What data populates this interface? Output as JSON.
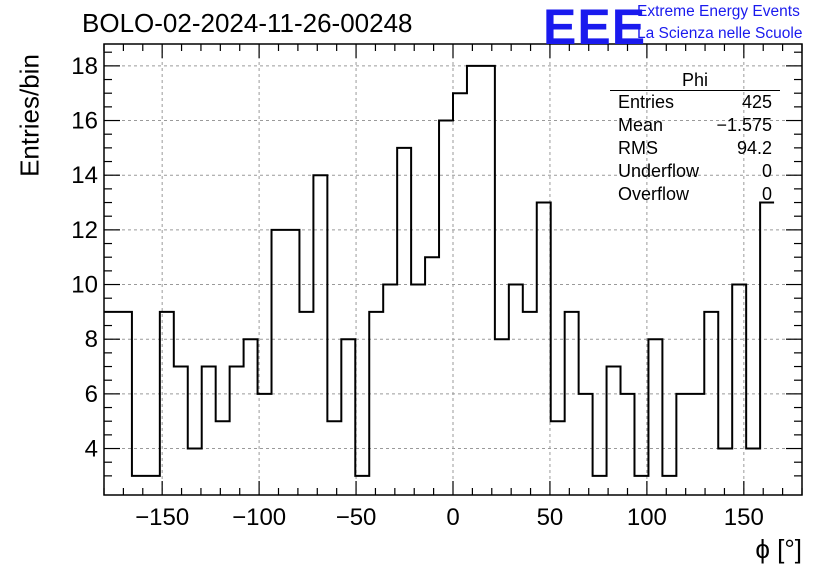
{
  "header": {
    "title": "BOLO-02-2024-11-26-00248",
    "logo_text": "EEE",
    "tagline_1": "Extreme Energy Events",
    "tagline_2": "La Scienza nelle Scuole"
  },
  "stats_box": {
    "title": "Phi",
    "rows": [
      {
        "label": "Entries",
        "value": "425"
      },
      {
        "label": "Mean",
        "value": "−1.575"
      },
      {
        "label": "RMS",
        "value": "94.2"
      },
      {
        "label": "Underflow",
        "value": "0"
      },
      {
        "label": "Overflow",
        "value": "0"
      }
    ]
  },
  "chart_data": {
    "type": "histogram",
    "title": "BOLO-02-2024-11-26-00248",
    "xlabel": "ϕ [°]",
    "ylabel": "Entries/bin",
    "xlim": [
      -180,
      180
    ],
    "ylim": [
      2.3,
      18.8
    ],
    "bin_width": 7.2,
    "x_ticks": [
      -150,
      -100,
      -50,
      0,
      50,
      100,
      150
    ],
    "x_tick_labels": [
      "−150",
      "−100",
      "−50",
      "0",
      "50",
      "100",
      "150"
    ],
    "y_ticks": [
      4,
      6,
      8,
      10,
      12,
      14,
      16,
      18
    ],
    "grid": true,
    "line_color": "#000000",
    "values": [
      9,
      9,
      3,
      3,
      9,
      7,
      4,
      7,
      5,
      7,
      8,
      6,
      12,
      12,
      9,
      14,
      5,
      8,
      3,
      9,
      10,
      15,
      10,
      11,
      16,
      17,
      18,
      18,
      8,
      10,
      9,
      13,
      5,
      9,
      6,
      3,
      7,
      6,
      3,
      8,
      3,
      6,
      6,
      9,
      4,
      10,
      4,
      13
    ]
  }
}
